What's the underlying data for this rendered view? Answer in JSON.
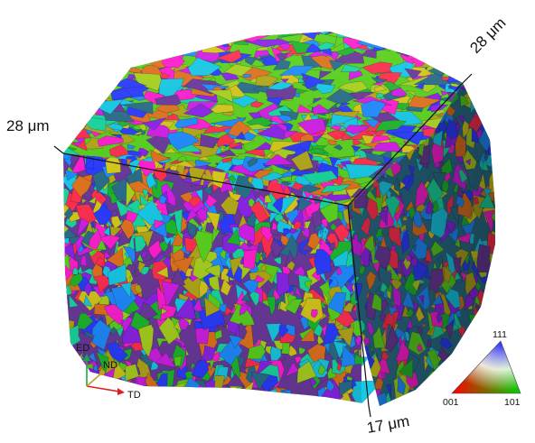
{
  "dimensions": {
    "left_edge": "28 μm",
    "right_edge": "28 μm",
    "vertical_edge": "17 μm"
  },
  "triad": {
    "up_label": "ED",
    "depth_label": "ND",
    "right_label": "TD",
    "up_color": "#19a84a",
    "depth_color": "#c8a020",
    "right_color": "#e02020"
  },
  "ipf_legend": {
    "top_label": "111",
    "left_label": "001",
    "right_label": "101",
    "top_color": "#2020ff",
    "left_color": "#ff0000",
    "right_color": "#00d000"
  },
  "palette": [
    "#ff1fd0",
    "#d21fe6",
    "#8c24e8",
    "#2b3dff",
    "#1f8cff",
    "#18c9e6",
    "#19d7a0",
    "#1fb82e",
    "#5bd21f",
    "#a8d21f",
    "#d4c81b",
    "#b3a81a",
    "#e0731f",
    "#ff3050",
    "#6b3a9c",
    "#2a6e8a"
  ]
}
